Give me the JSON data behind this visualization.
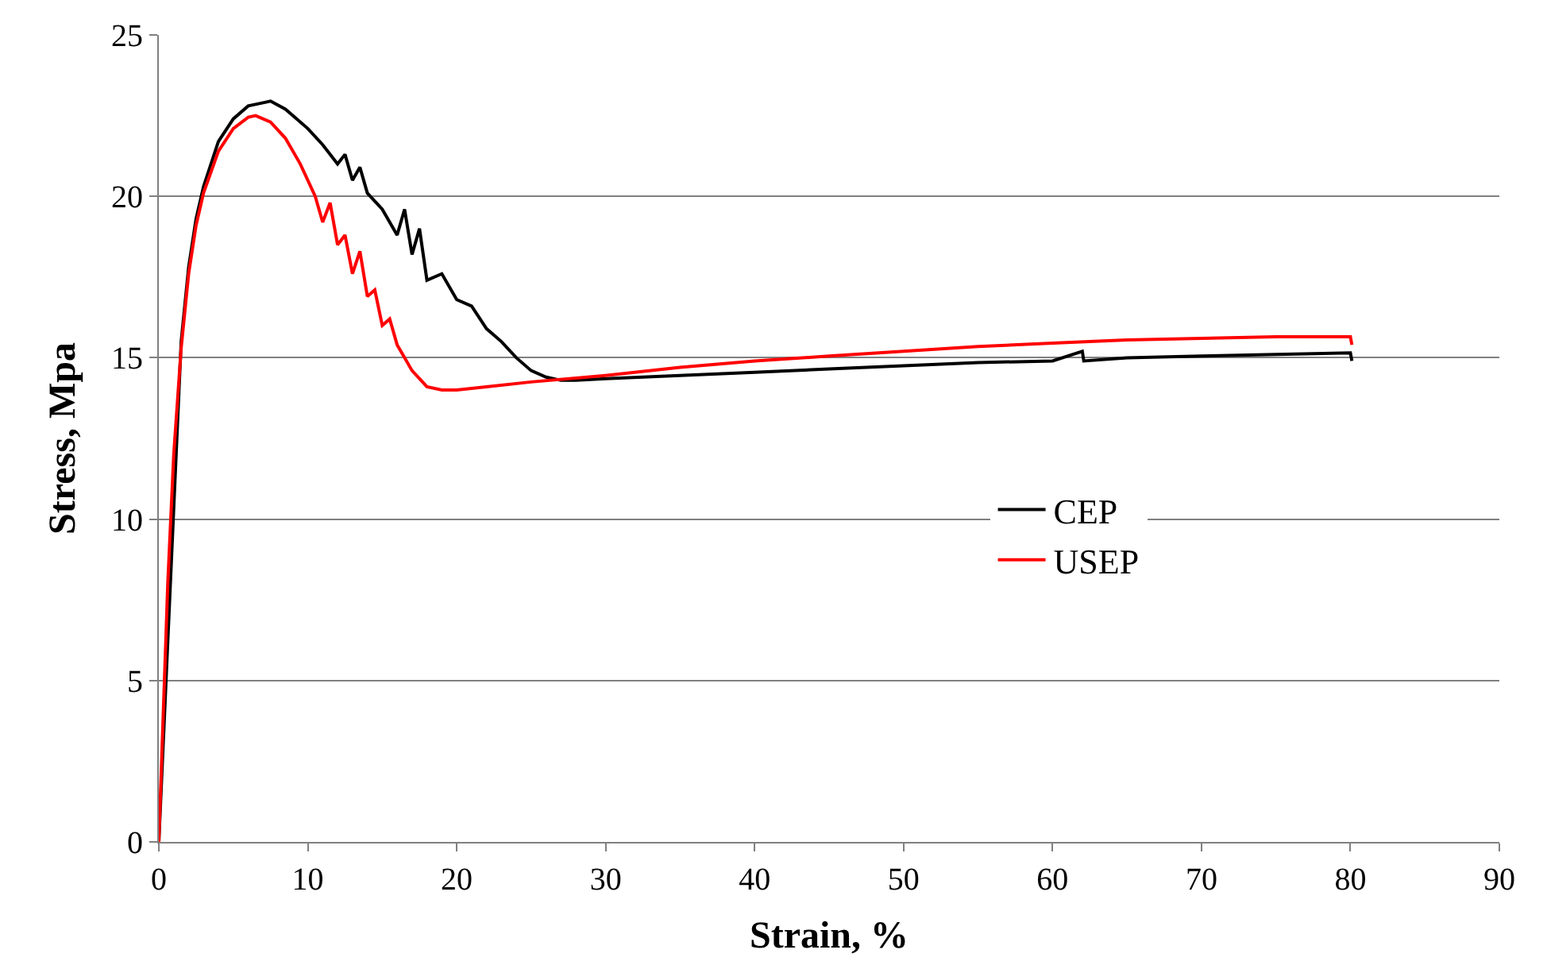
{
  "chart_data": {
    "type": "line",
    "xlabel": "Strain, %",
    "ylabel": "Stress, Mpa",
    "xlim": [
      0,
      90
    ],
    "xticks": [
      0,
      10,
      20,
      30,
      40,
      50,
      60,
      70,
      80,
      90
    ],
    "ylim": [
      0,
      25
    ],
    "yticks": [
      0,
      5,
      10,
      15,
      20,
      25
    ],
    "grid": "y",
    "legend": "right",
    "marker": "none",
    "line_style": "solid",
    "series": [
      {
        "name": "CEP",
        "color": "#000000",
        "x": [
          0,
          1.5,
          2.0,
          2.5,
          3.0,
          4.0,
          5.0,
          6.0,
          7.0,
          7.5,
          8.5,
          10,
          11,
          12,
          12.5,
          13,
          13.5,
          14,
          15,
          16,
          16.5,
          17,
          17.5,
          18,
          19,
          20,
          21,
          22,
          23,
          24,
          25,
          26,
          27,
          28,
          30,
          35,
          40,
          45,
          50,
          55,
          60,
          62,
          62.1,
          65,
          70,
          75,
          80,
          80.1
        ],
        "values": [
          0,
          15.5,
          17.8,
          19.3,
          20.3,
          21.7,
          22.4,
          22.8,
          22.9,
          22.95,
          22.7,
          22.1,
          21.6,
          21.0,
          21.3,
          20.5,
          20.9,
          20.1,
          19.6,
          18.8,
          19.6,
          18.2,
          19.0,
          17.4,
          17.6,
          16.8,
          16.6,
          15.9,
          15.5,
          15.0,
          14.6,
          14.4,
          14.3,
          14.3,
          14.35,
          14.45,
          14.55,
          14.65,
          14.75,
          14.85,
          14.9,
          15.2,
          14.9,
          15.0,
          15.05,
          15.1,
          15.15,
          14.9
        ]
      },
      {
        "name": "USEP",
        "color": "#ff0000",
        "x": [
          0,
          0.3,
          0.6,
          1.0,
          1.5,
          2.0,
          2.5,
          3.0,
          4.0,
          5.0,
          6.0,
          6.5,
          7.5,
          8.5,
          9.5,
          10.5,
          11,
          11.5,
          12,
          12.5,
          13,
          13.5,
          14,
          14.5,
          15,
          15.5,
          16,
          17,
          18,
          19,
          20,
          22,
          25,
          30,
          35,
          40,
          45,
          50,
          55,
          60,
          65,
          70,
          75,
          80,
          80.1
        ],
        "values": [
          0,
          4,
          8,
          12,
          15.3,
          17.6,
          19.1,
          20.1,
          21.4,
          22.1,
          22.45,
          22.5,
          22.3,
          21.8,
          21.0,
          20.0,
          19.2,
          19.8,
          18.5,
          18.8,
          17.6,
          18.3,
          16.9,
          17.1,
          16.0,
          16.2,
          15.4,
          14.6,
          14.1,
          14.0,
          14.0,
          14.1,
          14.25,
          14.45,
          14.7,
          14.9,
          15.05,
          15.2,
          15.35,
          15.45,
          15.55,
          15.6,
          15.65,
          15.65,
          15.4
        ]
      }
    ]
  }
}
